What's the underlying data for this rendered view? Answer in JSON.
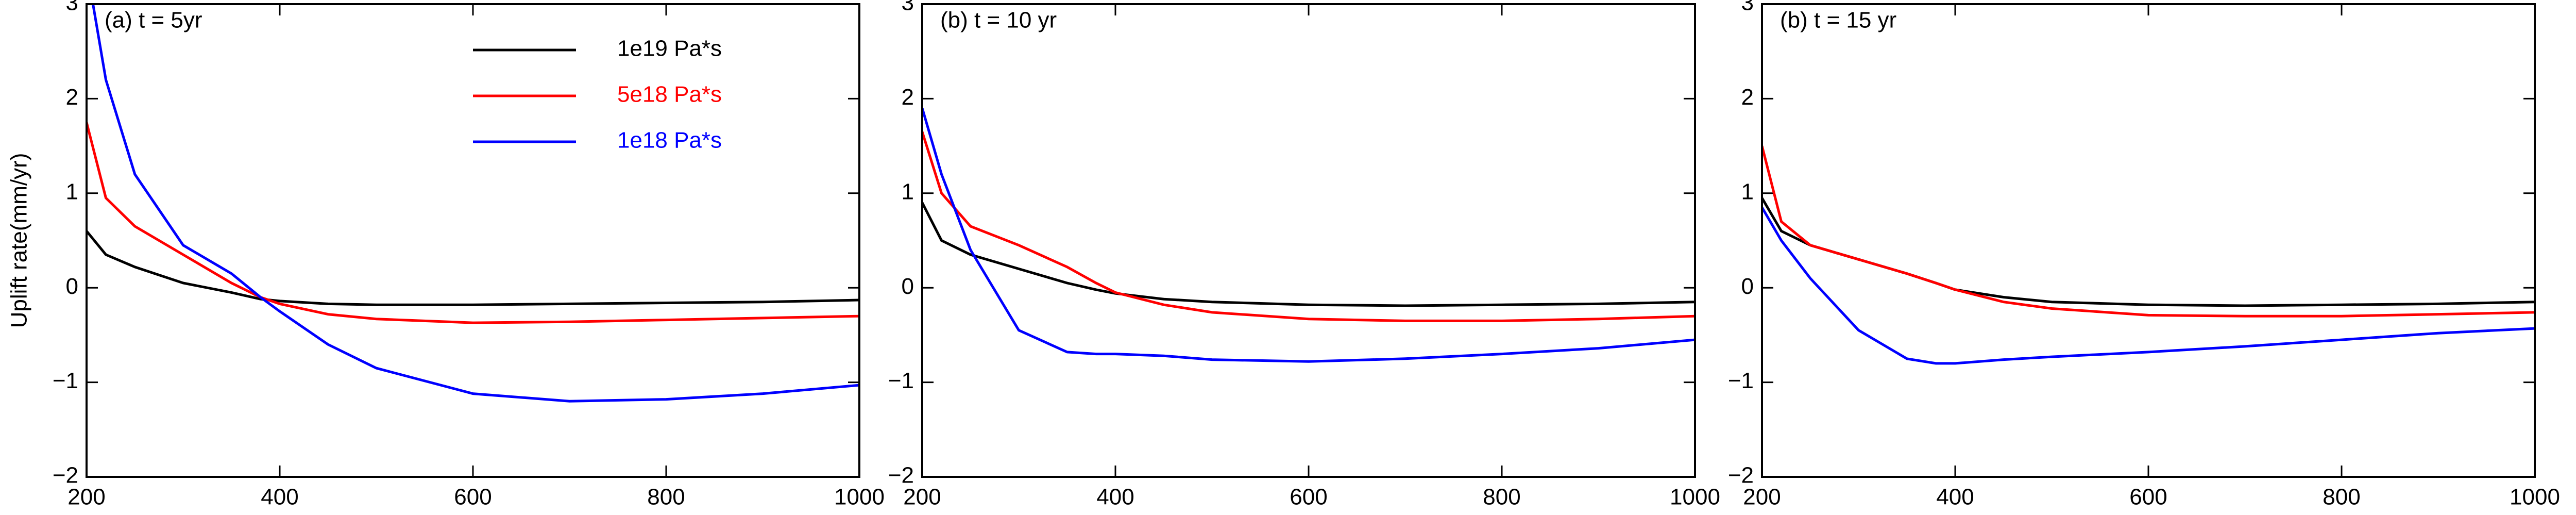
{
  "chart_data": [
    {
      "type": "line",
      "title": "(a) t = 5yr",
      "y_label": "Uplift rate(mm/yr)",
      "x": [
        200,
        220,
        250,
        300,
        350,
        380,
        400,
        450,
        500,
        600,
        700,
        800,
        900,
        1000
      ],
      "series": [
        {
          "name": "1e19 Pa*s",
          "color": "#000000",
          "values": [
            0.6,
            0.35,
            0.22,
            0.05,
            -0.05,
            -0.12,
            -0.14,
            -0.17,
            -0.18,
            -0.18,
            -0.17,
            -0.16,
            -0.15,
            -0.13
          ]
        },
        {
          "name": "5e18 Pa*s",
          "color": "#ff0000",
          "values": [
            1.75,
            0.95,
            0.65,
            0.35,
            0.05,
            -0.1,
            -0.17,
            -0.28,
            -0.33,
            -0.37,
            -0.36,
            -0.34,
            -0.32,
            -0.3
          ]
        },
        {
          "name": "1e18 Pa*s",
          "color": "#0000ff",
          "values": [
            3.4,
            2.2,
            1.2,
            0.45,
            0.15,
            -0.1,
            -0.25,
            -0.6,
            -0.85,
            -1.12,
            -1.2,
            -1.18,
            -1.12,
            -1.03
          ]
        }
      ],
      "xlim": [
        200,
        1000
      ],
      "xticks": [
        200,
        400,
        600,
        800,
        1000
      ],
      "ylim": [
        -2,
        3
      ],
      "yticks": [
        {
          "value": -2,
          "label": "−2"
        },
        {
          "value": -1,
          "label": "−1"
        },
        0,
        1,
        2,
        3
      ]
    },
    {
      "type": "line",
      "title": "(b) t = 10 yr",
      "x": [
        200,
        220,
        250,
        300,
        350,
        380,
        400,
        450,
        500,
        600,
        700,
        800,
        900,
        1000
      ],
      "series": [
        {
          "color": "#000000",
          "values": [
            0.9,
            0.5,
            0.35,
            0.2,
            0.05,
            -0.02,
            -0.06,
            -0.12,
            -0.15,
            -0.18,
            -0.19,
            -0.18,
            -0.17,
            -0.15
          ]
        },
        {
          "color": "#ff0000",
          "values": [
            1.65,
            1.0,
            0.65,
            0.45,
            0.22,
            0.05,
            -0.05,
            -0.18,
            -0.26,
            -0.33,
            -0.35,
            -0.35,
            -0.33,
            -0.3
          ]
        },
        {
          "color": "#0000ff",
          "values": [
            1.9,
            1.2,
            0.4,
            -0.45,
            -0.68,
            -0.7,
            -0.7,
            -0.72,
            -0.76,
            -0.78,
            -0.75,
            -0.7,
            -0.64,
            -0.55
          ]
        }
      ],
      "xlim": [
        200,
        1000
      ],
      "xticks": [
        200,
        400,
        600,
        800,
        1000
      ],
      "ylim": [
        -2,
        3
      ],
      "yticks": [
        {
          "value": -2,
          "label": "−2"
        },
        {
          "value": -1,
          "label": "−1"
        },
        0,
        1,
        2,
        3
      ]
    },
    {
      "type": "line",
      "title": "(b) t = 15 yr",
      "y_label": "Uplift rate (mm/yr)",
      "x": [
        200,
        220,
        250,
        300,
        350,
        380,
        400,
        450,
        500,
        600,
        700,
        800,
        900,
        1000
      ],
      "series": [
        {
          "color": "#000000",
          "values": [
            0.95,
            0.6,
            0.45,
            0.3,
            0.15,
            0.05,
            -0.02,
            -0.1,
            -0.15,
            -0.18,
            -0.19,
            -0.18,
            -0.17,
            -0.15
          ]
        },
        {
          "color": "#ff0000",
          "values": [
            1.5,
            0.7,
            0.45,
            0.3,
            0.15,
            0.05,
            -0.02,
            -0.15,
            -0.22,
            -0.29,
            -0.3,
            -0.3,
            -0.28,
            -0.26
          ]
        },
        {
          "color": "#0000ff",
          "values": [
            0.85,
            0.5,
            0.1,
            -0.45,
            -0.75,
            -0.8,
            -0.8,
            -0.76,
            -0.73,
            -0.68,
            -0.62,
            -0.55,
            -0.48,
            -0.43
          ]
        }
      ],
      "xlim": [
        200,
        1000
      ],
      "xticks": [
        200,
        400,
        600,
        800,
        1000
      ],
      "ylim": [
        -2,
        3
      ],
      "yticks": [
        {
          "value": -2,
          "label": "−2"
        },
        {
          "value": -1,
          "label": "−1"
        },
        0,
        1,
        2,
        3
      ]
    }
  ]
}
